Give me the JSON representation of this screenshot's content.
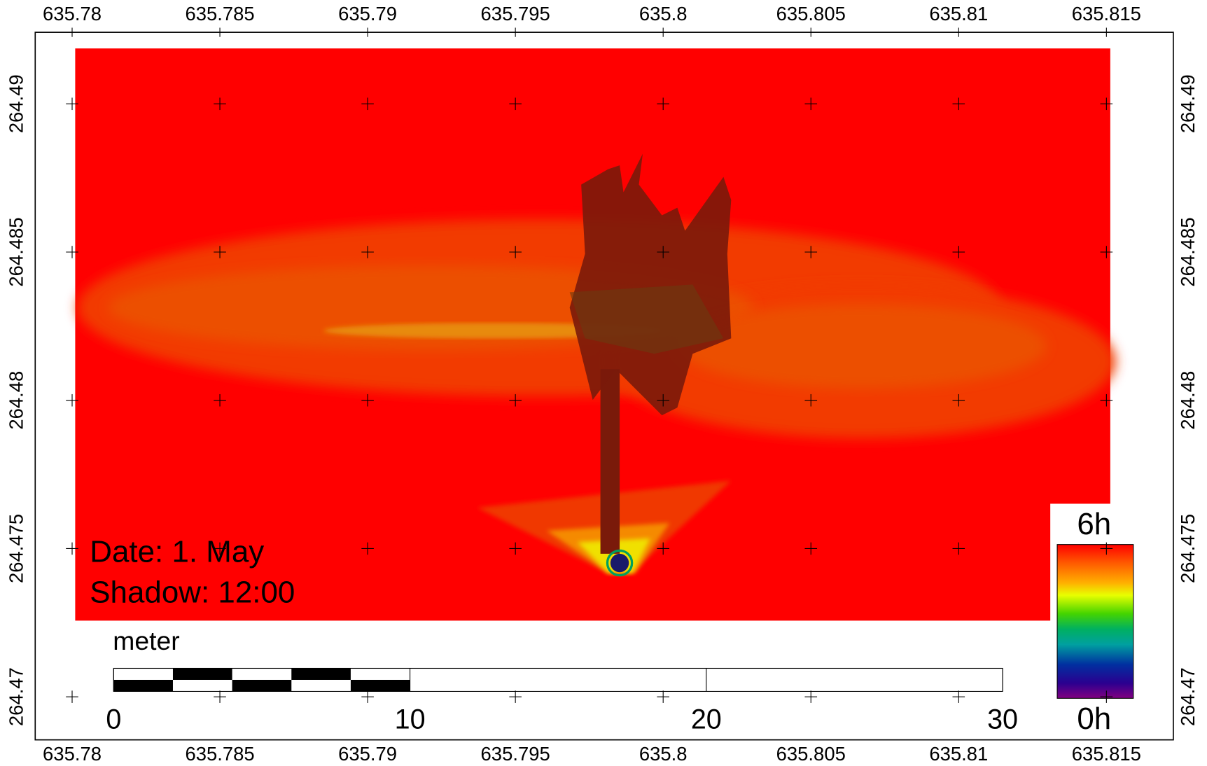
{
  "map": {
    "x_ticks": [
      635.78,
      635.785,
      635.79,
      635.795,
      635.8,
      635.805,
      635.81,
      635.815
    ],
    "y_ticks": [
      264.49,
      264.485,
      264.48,
      264.475,
      264.47
    ],
    "annotations": {
      "date": "Date: 1. May",
      "shadow": "Shadow: 12:00"
    },
    "scale_bar": {
      "unit": "meter",
      "labels": [
        0,
        10,
        20,
        30
      ]
    },
    "legend": {
      "max": "6h",
      "min": "0h"
    }
  }
}
